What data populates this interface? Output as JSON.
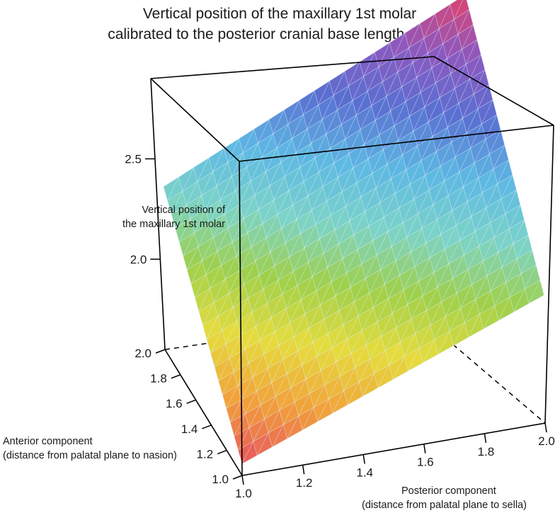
{
  "chart_data": {
    "type": "surface",
    "title": "Vertical position of the maxillary 1st molar",
    "subtitle": "calibrated to the posterior cranial base length (S-Ba)",
    "xlabel": "Posterior component",
    "xlabel_sub": "(distance from palatal plane to sella)",
    "ylabel": "Anterior component",
    "ylabel_sub": "(distance from palatal plane to nasion)",
    "zlabel": "Vertical position of",
    "zlabel_sub": "the maxillary 1st molar",
    "xlim": [
      1.0,
      2.0
    ],
    "ylim": [
      1.0,
      2.0
    ],
    "zlim": [
      1.55,
      2.9
    ],
    "x_ticks": [
      "1.0",
      "1.2",
      "1.4",
      "1.6",
      "1.8",
      "2.0"
    ],
    "y_ticks": [
      "1.0",
      "1.2",
      "1.4",
      "1.6",
      "1.8",
      "2.0"
    ],
    "z_ticks": [
      "2.0",
      "2.5"
    ],
    "surface_corners": {
      "x_min_y_min": 1.6,
      "x_max_y_min": 2.1,
      "x_min_y_max": 2.25,
      "x_max_y_max": 2.85
    },
    "grid_resolution": 20,
    "colormap": [
      "#e8525e",
      "#f2a23a",
      "#e6dc3c",
      "#9fd04a",
      "#7cd3c8",
      "#5db8e3",
      "#5a6fd1",
      "#8e58bf",
      "#e2426a"
    ]
  }
}
